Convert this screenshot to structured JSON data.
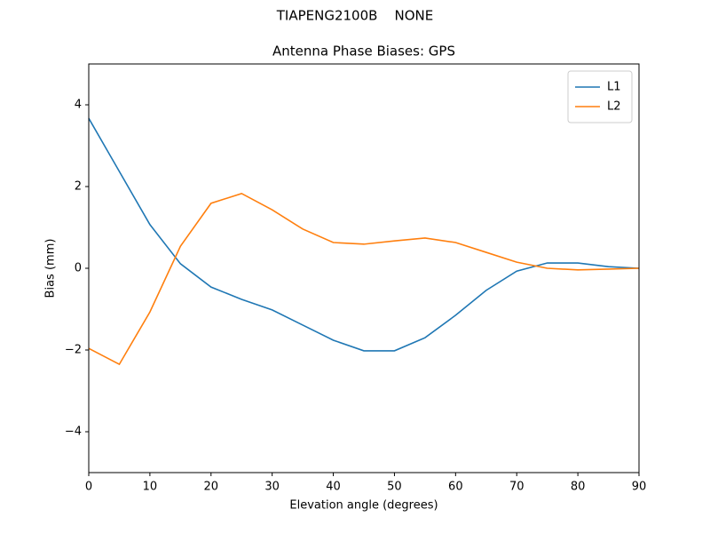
{
  "chart_data": {
    "type": "line",
    "suptitle": "TIAPENG2100B    NONE",
    "title": "Antenna Phase Biases: GPS",
    "xlabel": "Elevation angle (degrees)",
    "ylabel": "Bias (mm)",
    "x": [
      0,
      5,
      10,
      15,
      20,
      25,
      30,
      35,
      40,
      45,
      50,
      55,
      60,
      65,
      70,
      75,
      80,
      85,
      90
    ],
    "series": [
      {
        "name": "L1",
        "color": "#1f77b4",
        "values": [
          3.67,
          2.37,
          1.07,
          0.11,
          -0.46,
          -0.76,
          -1.02,
          -1.39,
          -1.76,
          -2.02,
          -2.02,
          -1.7,
          -1.15,
          -0.54,
          -0.07,
          0.13,
          0.13,
          0.04,
          0
        ]
      },
      {
        "name": "L2",
        "color": "#ff7f0e",
        "values": [
          -1.96,
          -2.35,
          -1.07,
          0.54,
          1.59,
          1.83,
          1.43,
          0.96,
          0.63,
          0.59,
          0.67,
          0.74,
          0.63,
          0.39,
          0.15,
          0,
          -0.04,
          -0.02,
          0
        ]
      }
    ],
    "xlim": [
      0,
      90
    ],
    "xticks": [
      0,
      10,
      20,
      30,
      40,
      50,
      60,
      70,
      80,
      90
    ],
    "ylim": [
      -5,
      5
    ],
    "yticks": [
      {
        "value": -4,
        "label": "−4"
      },
      {
        "value": -2,
        "label": "−2"
      },
      0,
      2,
      4
    ],
    "legend": "upper right",
    "grid": false
  }
}
